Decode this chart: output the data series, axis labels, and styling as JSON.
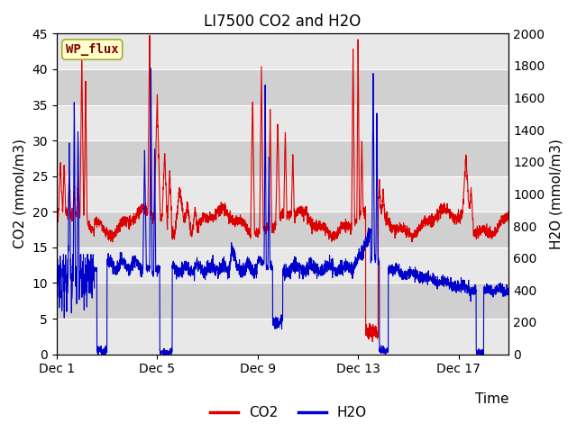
{
  "title": "LI7500 CO2 and H2O",
  "xlabel": "Time",
  "ylabel_left": "CO2 (mmol/m3)",
  "ylabel_right": "H2O (mmol/m3)",
  "ylim_left": [
    0,
    45
  ],
  "ylim_right": [
    0,
    2000
  ],
  "yticks_left": [
    0,
    5,
    10,
    15,
    20,
    25,
    30,
    35,
    40,
    45
  ],
  "yticks_right": [
    0,
    200,
    400,
    600,
    800,
    1000,
    1200,
    1400,
    1600,
    1800,
    2000
  ],
  "xtick_labels": [
    "Dec 1",
    "Dec 5",
    "Dec 9",
    "Dec 13",
    "Dec 17"
  ],
  "xtick_pos": [
    0,
    4,
    8,
    12,
    16
  ],
  "xlim": [
    0,
    18
  ],
  "legend_label": "WP_flux",
  "legend_box_color": "#ffffcc",
  "legend_box_edge": "#aaa830",
  "co2_color": "#dd0000",
  "h2o_color": "#0000cc",
  "bg_color": "#ffffff",
  "plot_bg_color": "#d8d8d8",
  "grid_color": "#ffffff",
  "title_fontsize": 12,
  "axis_fontsize": 11,
  "tick_fontsize": 10,
  "h2o_scale": 44.44,
  "band_colors": [
    "#e8e8e8",
    "#d0d0d0"
  ]
}
